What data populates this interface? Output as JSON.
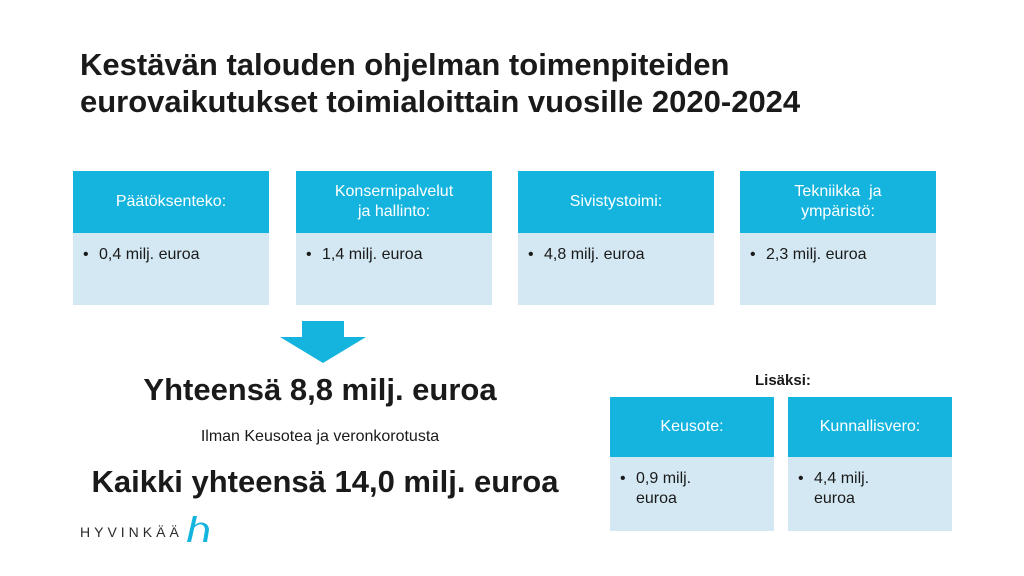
{
  "title": {
    "line1": "Kestävän talouden ohjelman toimenpiteiden",
    "line2": "eurovaikutukset toimialoittain vuosille 2020-2024"
  },
  "cards": [
    {
      "title_lines": [
        "Päätöksenteko:"
      ],
      "value_lines": [
        "0,4 milj. euroa"
      ]
    },
    {
      "title_lines": [
        "Konsernipalvelut",
        "ja hallinto:"
      ],
      "value_lines": [
        "1,4 milj. euroa"
      ]
    },
    {
      "title_lines": [
        "Sivistystoimi:"
      ],
      "value_lines": [
        "4,8 milj. euroa"
      ]
    },
    {
      "title_lines": [
        "Tekniikka  ja",
        "ympäristö:"
      ],
      "value_lines": [
        "2,3 milj. euroa"
      ]
    }
  ],
  "summary": {
    "total": "Yhteensä 8,8 milj. euroa",
    "note": "Ilman Keusotea ja veronkorotusta",
    "grand_total": "Kaikki yhteensä 14,0 milj. euroa"
  },
  "extra": {
    "label": "Lisäksi:",
    "cards": [
      {
        "title": "Keusote:",
        "value_lines": [
          "0,9 milj.",
          "euroa"
        ]
      },
      {
        "title": "Kunnallisvero:",
        "value_lines": [
          "4,4 milj.",
          "euroa"
        ]
      }
    ]
  },
  "bullet_char": "•",
  "logo": {
    "text": "HYVINKÄÄ",
    "mark_icon": "hyvinkaa-logo-mark"
  },
  "colors": {
    "accent": "#15b4de",
    "card_body": "#d3e8f3",
    "text": "#1a1a1a"
  }
}
